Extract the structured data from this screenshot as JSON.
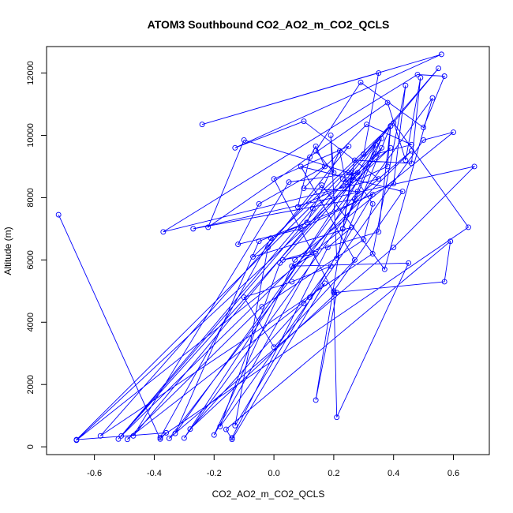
{
  "chart_data": {
    "type": "line",
    "title": "ATOM3 Southbound CO2_AO2_m_CO2_QCLS",
    "xlabel": "CO2_AO2_m_CO2_QCLS",
    "ylabel": "Altitude (m)",
    "xlim": [
      -0.76,
      0.72
    ],
    "ylim": [
      -250,
      12850
    ],
    "x_ticks": [
      -0.6,
      -0.4,
      -0.2,
      0.0,
      0.2,
      0.4,
      0.6
    ],
    "x_tick_labels": [
      "-0.6",
      "-0.4",
      "-0.2",
      "0.0",
      "0.2",
      "0.4",
      "0.6"
    ],
    "y_ticks": [
      0,
      2000,
      4000,
      6000,
      8000,
      10000,
      12000
    ],
    "y_tick_labels": [
      "0",
      "2000",
      "4000",
      "6000",
      "8000",
      "10000",
      "12000"
    ],
    "grid": false,
    "line_color": "#0000ff",
    "marker": "open-circle",
    "series": [
      {
        "x": [
          -0.72,
          -0.38,
          -0.36,
          -0.66,
          0.3,
          0.35,
          -0.24,
          0.56,
          -0.13,
          0.1,
          0.35,
          -0.37,
          0.48,
          0.57,
          0.5,
          0.29,
          0.14,
          0.2,
          0.19,
          0.21,
          0.39,
          0.38,
          0.08,
          0.12,
          0.14,
          0.17,
          -0.05,
          -0.12,
          0.09,
          0.4,
          0.44,
          0.33,
          -0.58,
          0.16,
          0.37,
          0.53,
          -0.3,
          0.34,
          0.23,
          0.27,
          0.46,
          0.49,
          0.44,
          0.38,
          -0.22,
          -0.1,
          0.25,
          0.55,
          -0.47,
          0.05,
          0.28,
          -0.52,
          0.13,
          0.39,
          -0.66,
          0.23,
          0.36,
          -0.2,
          0.07,
          0.6,
          0.5,
          -0.18,
          0.02,
          0.36,
          -0.33,
          -0.05,
          0.11,
          0.22,
          0.24,
          0.34,
          0.46,
          0.31,
          0.1,
          0.28,
          -0.35,
          0.4,
          0.67,
          -0.27,
          0.27,
          0.46,
          -0.51,
          0.23,
          0.4,
          0.65,
          -0.38,
          -0.01,
          0.33,
          -0.13,
          -0.02,
          0.25,
          0.0,
          0.2,
          0.57,
          0.59,
          -0.16,
          -0.14,
          0.17,
          0.12,
          -0.49,
          -0.04,
          0.3,
          0.33,
          0.26,
          0.14,
          0.21,
          -0.28,
          0.1,
          0.19,
          0.06,
          -0.1,
          0.0,
          0.27,
          0.09,
          0.43,
          0.2,
          0.21,
          0.45,
          0.06,
          0.14,
          0.03,
          0.35,
          0.39,
          -0.07,
          0.26,
          0.18,
          -0.14
        ],
        "y": [
          7450,
          250,
          450,
          230,
          9400,
          12000,
          10350,
          12600,
          9600,
          10450,
          8600,
          6900,
          11950,
          11900,
          10250,
          11700,
          9500,
          8800,
          10000,
          6050,
          10300,
          9000,
          7700,
          9300,
          9650,
          9000,
          7800,
          6500,
          7000,
          8450,
          11600,
          6200,
          350,
          8400,
          5700,
          11200,
          280,
          9700,
          7000,
          9200,
          9100,
          11850,
          9200,
          11050,
          7050,
          9850,
          8800,
          12150,
          350,
          8500,
          8800,
          250,
          7650,
          9600,
          210,
          7000,
          9900,
          380,
          6000,
          10100,
          9850,
          650,
          5900,
          9600,
          430,
          6600,
          7200,
          9500,
          8500,
          9400,
          9700,
          10350,
          8300,
          8200,
          270,
          6400,
          9000,
          7000,
          7950,
          9500,
          350,
          8600,
          10400,
          7050,
          300,
          6700,
          8100,
          680,
          6400,
          9650,
          8600,
          4950,
          5300,
          6600,
          560,
          240,
          5250,
          4800,
          240,
          4500,
          6650,
          7800,
          8800,
          1500,
          4950,
          570,
          4600,
          5800,
          5300,
          4800,
          3200,
          6000,
          9000,
          8200,
          5000,
          950,
          5900,
          5800,
          6200,
          6000,
          6900,
          10300,
          6100,
          7050,
          6400,
          290
        ]
      }
    ]
  }
}
